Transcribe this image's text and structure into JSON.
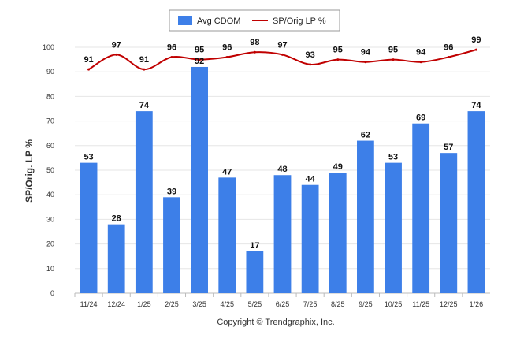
{
  "chart_data": {
    "type": "bar",
    "categories": [
      "11/24",
      "12/24",
      "1/25",
      "2/25",
      "3/25",
      "4/25",
      "5/25",
      "6/25",
      "7/25",
      "8/25",
      "9/25",
      "10/25",
      "11/25",
      "12/25",
      "1/26"
    ],
    "series": [
      {
        "name": "Avg CDOM",
        "type": "bar",
        "color": "#3d7fe8",
        "values": [
          53,
          28,
          74,
          39,
          92,
          47,
          17,
          48,
          44,
          49,
          62,
          53,
          69,
          57,
          74
        ]
      },
      {
        "name": "SP/Orig LP %",
        "type": "line",
        "color": "#c00000",
        "values": [
          91,
          97,
          91,
          96,
          95,
          96,
          98,
          97,
          93,
          95,
          94,
          95,
          94,
          96,
          99
        ]
      }
    ],
    "ylabel": "SP/Orig. LP %",
    "xlabel": "",
    "ylim": [
      0,
      100
    ],
    "yticks": [
      0,
      10,
      20,
      30,
      40,
      50,
      60,
      70,
      80,
      90,
      100
    ],
    "grid": true,
    "legend": "top-center"
  },
  "footer": {
    "copyright": "Copyright © Trendgraphix, Inc."
  }
}
